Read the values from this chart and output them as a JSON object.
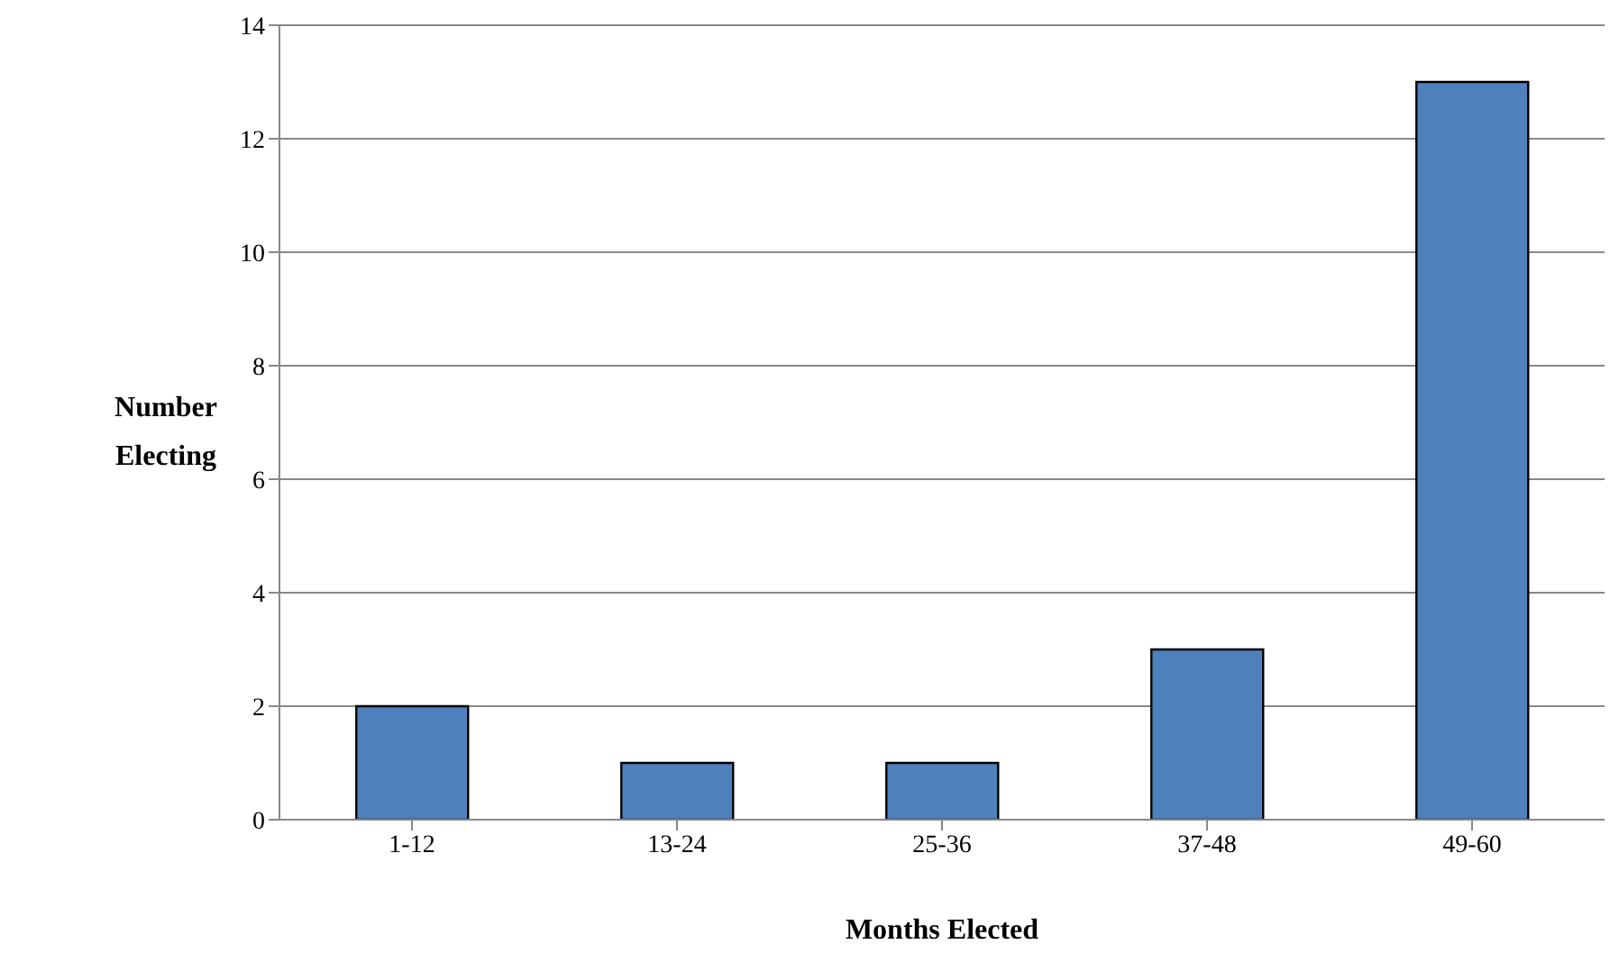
{
  "chart_data": {
    "type": "bar",
    "xlabel": "Months Elected",
    "ylabel": "Number Electing",
    "categories": [
      "1-12",
      "13-24",
      "25-36",
      "37-48",
      "49-60"
    ],
    "values": [
      2,
      1,
      1,
      3,
      13
    ],
    "color": "#4f81bd",
    "ylim": [
      0,
      14
    ],
    "yticks": [
      0,
      2,
      4,
      6,
      8,
      10,
      12,
      14
    ],
    "grid": "y"
  }
}
